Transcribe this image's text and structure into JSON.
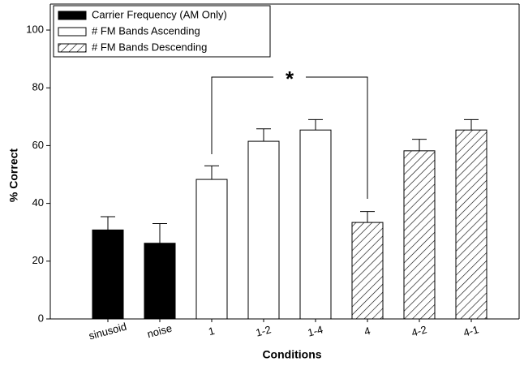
{
  "chart_data": {
    "type": "bar",
    "x_label": "Conditions",
    "y_label": "% Correct",
    "categories": [
      "sinusoid",
      "noise",
      "1",
      "1-2",
      "1-4",
      "4",
      "4-2",
      "4-1"
    ],
    "series": [
      {
        "name": "Carrier Frequency (AM Only)",
        "color": "#000000",
        "pattern": "solid",
        "values": [
          30.8,
          26.2,
          null,
          null,
          null,
          null,
          null,
          null
        ],
        "errors": [
          4.6,
          6.8,
          null,
          null,
          null,
          null,
          null,
          null
        ]
      },
      {
        "name": "# FM Bands Ascending",
        "color": "#ffffff",
        "pattern": "solid",
        "values": [
          null,
          null,
          48.3,
          61.5,
          65.4,
          null,
          null,
          null
        ],
        "errors": [
          null,
          null,
          4.7,
          4.3,
          3.6,
          null,
          null,
          null
        ]
      },
      {
        "name": "# FM Bands Descending",
        "color": "#ffffff",
        "pattern": "hatch",
        "values": [
          null,
          null,
          null,
          null,
          null,
          33.4,
          58.2,
          65.4
        ],
        "errors": [
          null,
          null,
          null,
          null,
          null,
          3.8,
          4.0,
          3.6
        ]
      }
    ],
    "annotation": "*",
    "ylim": [
      0,
      109
    ],
    "yticks": [
      0,
      20,
      40,
      60,
      80,
      100
    ],
    "grid": false,
    "legend": "top-left"
  }
}
